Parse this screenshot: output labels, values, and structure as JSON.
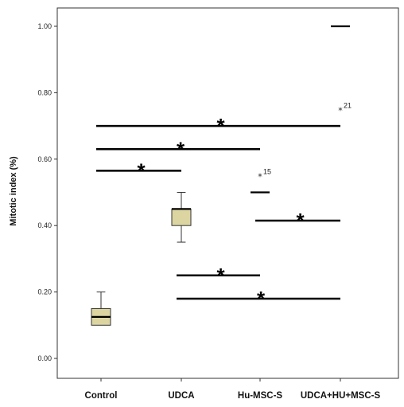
{
  "chart_data": {
    "type": "box",
    "ylabel": "Mitotic index (%)",
    "xlabel": "",
    "ylim": [
      0.0,
      1.0
    ],
    "yticks": [
      0.0,
      0.2,
      0.4,
      0.6,
      0.8,
      1.0
    ],
    "ytick_labels": [
      "0.00",
      "0.20",
      "0.40",
      "0.60",
      "0.80",
      "1.00"
    ],
    "categories": [
      "Control",
      "UDCA",
      "Hu-MSC-S",
      "UDCA+HU+MSC-S"
    ],
    "box_color": "#dcd5a2",
    "groups": [
      {
        "category": "Control",
        "min": 0.1,
        "q1": 0.1,
        "median": 0.125,
        "q3": 0.15,
        "max": 0.2,
        "outliers": []
      },
      {
        "category": "UDCA",
        "min": 0.35,
        "q1": 0.4,
        "median": 0.45,
        "q3": 0.45,
        "max": 0.5,
        "outliers": []
      },
      {
        "category": "Hu-MSC-S",
        "min": 0.5,
        "q1": 0.5,
        "median": 0.5,
        "q3": 0.5,
        "max": 0.5,
        "outliers": [
          {
            "value": 0.55,
            "label": "15"
          }
        ]
      },
      {
        "category": "UDCA+HU+MSC-S",
        "min": 1.0,
        "q1": 1.0,
        "median": 1.0,
        "q3": 1.0,
        "max": 1.0,
        "outliers": [
          {
            "value": 0.75,
            "label": "21"
          }
        ]
      }
    ],
    "significance": [
      {
        "from": "Control",
        "to": "UDCA+HU+MSC-S",
        "y": 0.7,
        "marker": "*"
      },
      {
        "from": "Control",
        "to": "Hu-MSC-S",
        "y": 0.63,
        "marker": "*"
      },
      {
        "from": "Control",
        "to": "UDCA",
        "y": 0.565,
        "marker": "*"
      },
      {
        "from": "Hu-MSC-S",
        "to": "UDCA+HU+MSC-S",
        "y": 0.415,
        "marker": "*"
      },
      {
        "from": "UDCA",
        "to": "Hu-MSC-S",
        "y": 0.25,
        "marker": "*"
      },
      {
        "from": "UDCA",
        "to": "UDCA+HU+MSC-S",
        "y": 0.18,
        "marker": "*"
      }
    ]
  }
}
